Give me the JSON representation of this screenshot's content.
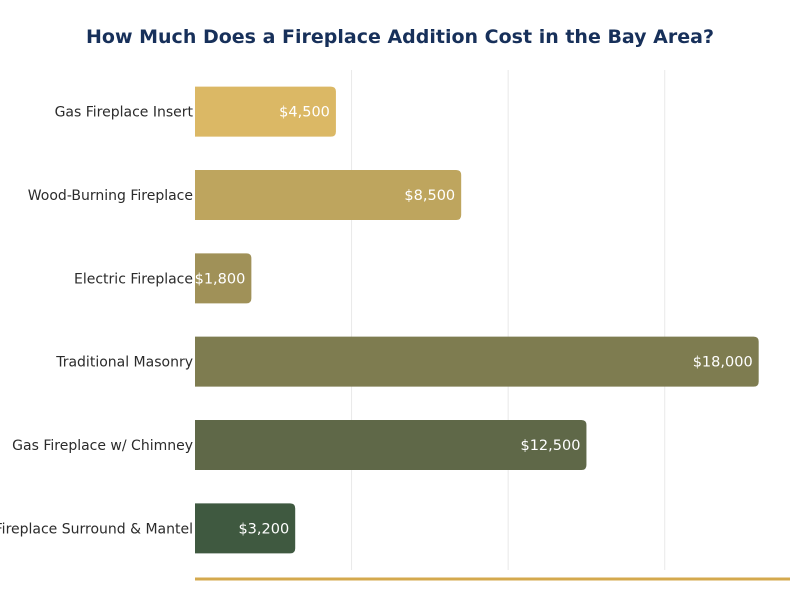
{
  "chart_data": {
    "type": "bar",
    "orientation": "horizontal",
    "title": "How Much Does a Fireplace Addition Cost in the Bay Area?",
    "categories": [
      "Gas Fireplace Insert",
      "Wood-Burning Fireplace",
      "Electric Fireplace",
      "Traditional Masonry",
      "Gas Fireplace w/ Chimney",
      "Fireplace Surround & Mantel"
    ],
    "values": [
      4500,
      8500,
      1800,
      18000,
      12500,
      3200
    ],
    "value_labels": [
      "$4,500",
      "$8,500",
      "$1,800",
      "$18,000",
      "$12,500",
      "$3,200"
    ],
    "colors": [
      "#dbb865",
      "#bea55e",
      "#a09158",
      "#7e7c50",
      "#5f6848",
      "#3f5940"
    ],
    "accent_color": "#d4a94e",
    "xlim": [
      0,
      19000
    ],
    "grid_ticks": [
      5000,
      10000,
      15000
    ],
    "xlabel": "",
    "ylabel": "",
    "grid": true,
    "legend": "none"
  }
}
